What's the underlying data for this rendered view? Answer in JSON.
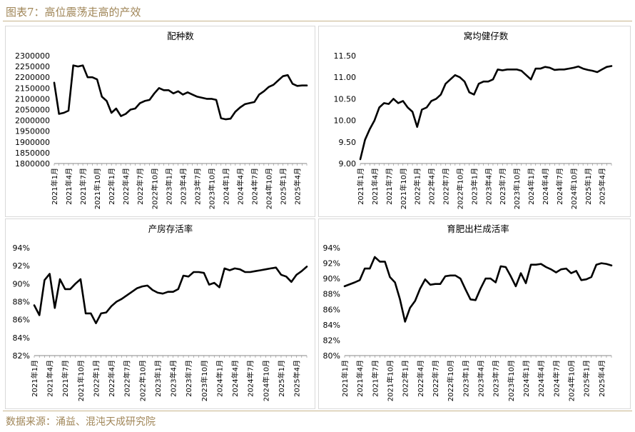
{
  "figure": {
    "title": "图表7：高位震荡走高的产效",
    "source": "数据来源：涌益、混沌天成研究院"
  },
  "chart_data": [
    {
      "type": "line",
      "title": "配种数",
      "x": [
        "2021年1月",
        "2021年4月",
        "2021年7月",
        "2021年10月",
        "2022年1月",
        "2022年4月",
        "2022年7月",
        "2022年10月",
        "2023年1月",
        "2023年4月",
        "2023年7月",
        "2023年10月",
        "2024年1月",
        "2024年4月",
        "2024年7月",
        "2024年10月",
        "2025年1月",
        "2025年4月"
      ],
      "ylim": [
        1800000,
        2300000
      ],
      "yticks": [
        1800000,
        1850000,
        1900000,
        1950000,
        2000000,
        2050000,
        2100000,
        2150000,
        2200000,
        2250000,
        2300000
      ],
      "ytick_labels": [
        "1800000",
        "1850000",
        "1900000",
        "1950000",
        "2000000",
        "2050000",
        "2100000",
        "2150000",
        "2200000",
        "2250000",
        "2300000"
      ],
      "x_range": [
        "2021-01",
        "2025-06"
      ],
      "series": [
        {
          "values": [
            [
              "2021-01",
              2175000
            ],
            [
              "2021-02",
              2030000
            ],
            [
              "2021-03",
              2035000
            ],
            [
              "2021-04",
              2045000
            ],
            [
              "2021-05",
              2255000
            ],
            [
              "2021-06",
              2250000
            ],
            [
              "2021-07",
              2255000
            ],
            [
              "2021-08",
              2200000
            ],
            [
              "2021-09",
              2200000
            ],
            [
              "2021-10",
              2190000
            ],
            [
              "2021-11",
              2110000
            ],
            [
              "2021-12",
              2090000
            ],
            [
              "2022-01",
              2035000
            ],
            [
              "2022-02",
              2055000
            ],
            [
              "2022-03",
              2020000
            ],
            [
              "2022-04",
              2030000
            ],
            [
              "2022-05",
              2050000
            ],
            [
              "2022-06",
              2055000
            ],
            [
              "2022-07",
              2080000
            ],
            [
              "2022-08",
              2090000
            ],
            [
              "2022-09",
              2095000
            ],
            [
              "2022-10",
              2125000
            ],
            [
              "2022-11",
              2150000
            ],
            [
              "2022-12",
              2140000
            ],
            [
              "2023-01",
              2140000
            ],
            [
              "2023-02",
              2125000
            ],
            [
              "2023-03",
              2135000
            ],
            [
              "2023-04",
              2120000
            ],
            [
              "2023-05",
              2130000
            ],
            [
              "2023-06",
              2120000
            ],
            [
              "2023-07",
              2110000
            ],
            [
              "2023-08",
              2105000
            ],
            [
              "2023-09",
              2100000
            ],
            [
              "2023-10",
              2100000
            ],
            [
              "2023-11",
              2095000
            ],
            [
              "2023-12",
              2010000
            ],
            [
              "2024-01",
              2005000
            ],
            [
              "2024-02",
              2008000
            ],
            [
              "2024-03",
              2040000
            ],
            [
              "2024-04",
              2060000
            ],
            [
              "2024-05",
              2075000
            ],
            [
              "2024-06",
              2080000
            ],
            [
              "2024-07",
              2085000
            ],
            [
              "2024-08",
              2120000
            ],
            [
              "2024-09",
              2135000
            ],
            [
              "2024-10",
              2155000
            ],
            [
              "2024-11",
              2165000
            ],
            [
              "2024-12",
              2185000
            ],
            [
              "2025-01",
              2205000
            ],
            [
              "2025-02",
              2210000
            ],
            [
              "2025-03",
              2170000
            ],
            [
              "2025-04",
              2160000
            ],
            [
              "2025-05",
              2162000
            ],
            [
              "2025-06",
              2162000
            ]
          ]
        }
      ]
    },
    {
      "type": "line",
      "title": "窝均健仔数",
      "x": [
        "2021年1月",
        "2021年4月",
        "2021年7月",
        "2021年10月",
        "2022年1月",
        "2022年4月",
        "2022年7月",
        "2022年10月",
        "2023年1月",
        "2023年4月",
        "2023年7月",
        "2023年10月",
        "2024年1月",
        "2024年4月",
        "2024年7月",
        "2024年10月",
        "2025年1月",
        "2025年4月"
      ],
      "ylim": [
        9.0,
        11.5
      ],
      "yticks": [
        9.0,
        9.5,
        10.0,
        10.5,
        11.0,
        11.5
      ],
      "ytick_labels": [
        "9.00",
        "9.50",
        "10.00",
        "10.50",
        "11.00",
        "11.50"
      ],
      "x_range": [
        "2021-01",
        "2025-06"
      ],
      "series": [
        {
          "values": [
            [
              "2021-01",
              9.1
            ],
            [
              "2021-02",
              9.55
            ],
            [
              "2021-03",
              9.8
            ],
            [
              "2021-04",
              10.0
            ],
            [
              "2021-05",
              10.3
            ],
            [
              "2021-06",
              10.4
            ],
            [
              "2021-07",
              10.38
            ],
            [
              "2021-08",
              10.5
            ],
            [
              "2021-09",
              10.4
            ],
            [
              "2021-10",
              10.45
            ],
            [
              "2021-11",
              10.3
            ],
            [
              "2021-12",
              10.2
            ],
            [
              "2022-01",
              9.85
            ],
            [
              "2022-02",
              10.25
            ],
            [
              "2022-03",
              10.3
            ],
            [
              "2022-04",
              10.45
            ],
            [
              "2022-05",
              10.5
            ],
            [
              "2022-06",
              10.6
            ],
            [
              "2022-07",
              10.85
            ],
            [
              "2022-08",
              10.95
            ],
            [
              "2022-09",
              11.05
            ],
            [
              "2022-10",
              11.0
            ],
            [
              "2022-11",
              10.9
            ],
            [
              "2022-12",
              10.65
            ],
            [
              "2023-01",
              10.6
            ],
            [
              "2023-02",
              10.85
            ],
            [
              "2023-03",
              10.9
            ],
            [
              "2023-04",
              10.9
            ],
            [
              "2023-05",
              10.95
            ],
            [
              "2023-06",
              11.18
            ],
            [
              "2023-07",
              11.16
            ],
            [
              "2023-08",
              11.18
            ],
            [
              "2023-09",
              11.18
            ],
            [
              "2023-10",
              11.18
            ],
            [
              "2023-11",
              11.15
            ],
            [
              "2023-12",
              11.05
            ],
            [
              "2024-01",
              10.95
            ],
            [
              "2024-02",
              11.2
            ],
            [
              "2024-03",
              11.2
            ],
            [
              "2024-04",
              11.24
            ],
            [
              "2024-05",
              11.22
            ],
            [
              "2024-06",
              11.17
            ],
            [
              "2024-07",
              11.18
            ],
            [
              "2024-08",
              11.18
            ],
            [
              "2024-09",
              11.2
            ],
            [
              "2024-10",
              11.22
            ],
            [
              "2024-11",
              11.25
            ],
            [
              "2024-12",
              11.2
            ],
            [
              "2025-01",
              11.17
            ],
            [
              "2025-02",
              11.15
            ],
            [
              "2025-03",
              11.12
            ],
            [
              "2025-04",
              11.18
            ],
            [
              "2025-05",
              11.24
            ],
            [
              "2025-06",
              11.26
            ]
          ]
        }
      ]
    },
    {
      "type": "line",
      "title": "产房存活率",
      "x": [
        "2021年1月",
        "2021年4月",
        "2021年7月",
        "2021年10月",
        "2022年1月",
        "2022年4月",
        "2022年7月",
        "2022年10月",
        "2023年1月",
        "2023年4月",
        "2023年7月",
        "2023年10月",
        "2024年1月",
        "2024年4月",
        "2024年7月",
        "2024年10月",
        "2025年1月",
        "2025年4月"
      ],
      "ylim": [
        82,
        94
      ],
      "yticks": [
        82,
        84,
        86,
        88,
        90,
        92,
        94
      ],
      "ytick_labels": [
        "82%",
        "84%",
        "86%",
        "88%",
        "90%",
        "92%",
        "94%"
      ],
      "x_range": [
        "2021-01",
        "2025-06"
      ],
      "series": [
        {
          "values": [
            [
              "2021-01",
              87.6
            ],
            [
              "2021-02",
              86.5
            ],
            [
              "2021-03",
              90.4
            ],
            [
              "2021-04",
              91.1
            ],
            [
              "2021-05",
              87.3
            ],
            [
              "2021-06",
              90.5
            ],
            [
              "2021-07",
              89.4
            ],
            [
              "2021-08",
              89.4
            ],
            [
              "2021-09",
              90.0
            ],
            [
              "2021-10",
              90.5
            ],
            [
              "2021-11",
              86.7
            ],
            [
              "2021-12",
              86.7
            ],
            [
              "2022-01",
              85.6
            ],
            [
              "2022-02",
              86.7
            ],
            [
              "2022-03",
              86.8
            ],
            [
              "2022-04",
              87.5
            ],
            [
              "2022-05",
              88.0
            ],
            [
              "2022-06",
              88.3
            ],
            [
              "2022-07",
              88.7
            ],
            [
              "2022-08",
              89.1
            ],
            [
              "2022-09",
              89.5
            ],
            [
              "2022-10",
              89.7
            ],
            [
              "2022-11",
              89.8
            ],
            [
              "2022-12",
              89.3
            ],
            [
              "2023-01",
              89.0
            ],
            [
              "2023-02",
              88.9
            ],
            [
              "2023-03",
              89.1
            ],
            [
              "2023-04",
              89.1
            ],
            [
              "2023-05",
              89.4
            ],
            [
              "2023-06",
              90.9
            ],
            [
              "2023-07",
              90.8
            ],
            [
              "2023-08",
              91.3
            ],
            [
              "2023-09",
              91.3
            ],
            [
              "2023-10",
              91.2
            ],
            [
              "2023-11",
              89.9
            ],
            [
              "2023-12",
              90.1
            ],
            [
              "2024-01",
              89.6
            ],
            [
              "2024-02",
              91.7
            ],
            [
              "2024-03",
              91.5
            ],
            [
              "2024-04",
              91.7
            ],
            [
              "2024-05",
              91.6
            ],
            [
              "2024-06",
              91.3
            ],
            [
              "2024-07",
              91.3
            ],
            [
              "2024-08",
              91.4
            ],
            [
              "2024-09",
              91.5
            ],
            [
              "2024-10",
              91.6
            ],
            [
              "2024-11",
              91.7
            ],
            [
              "2024-12",
              91.8
            ],
            [
              "2025-01",
              91.0
            ],
            [
              "2025-02",
              90.8
            ],
            [
              "2025-03",
              90.2
            ],
            [
              "2025-04",
              91.0
            ],
            [
              "2025-05",
              91.4
            ],
            [
              "2025-06",
              91.9
            ]
          ]
        }
      ]
    },
    {
      "type": "line",
      "title": "育肥出栏成活率",
      "x": [
        "2021年1月",
        "2021年4月",
        "2021年7月",
        "2021年10月",
        "2022年1月",
        "2022年4月",
        "2022年7月",
        "2022年10月",
        "2023年1月",
        "2023年4月",
        "2023年7月",
        "2023年10月",
        "2024年1月",
        "2024年4月",
        "2024年7月",
        "2024年10月",
        "2025年1月",
        "2025年4月"
      ],
      "ylim": [
        80,
        94
      ],
      "yticks": [
        80,
        82,
        84,
        86,
        88,
        90,
        92,
        94
      ],
      "ytick_labels": [
        "80%",
        "82%",
        "84%",
        "86%",
        "88%",
        "90%",
        "92%",
        "94%"
      ],
      "x_range": [
        "2021-01",
        "2025-06"
      ],
      "series": [
        {
          "values": [
            [
              "2021-01",
              89.0
            ],
            [
              "2021-03",
              89.5
            ],
            [
              "2021-04",
              89.8
            ],
            [
              "2021-05",
              91.3
            ],
            [
              "2021-06",
              91.3
            ],
            [
              "2021-07",
              92.8
            ],
            [
              "2021-08",
              92.2
            ],
            [
              "2021-09",
              92.2
            ],
            [
              "2021-10",
              90.2
            ],
            [
              "2021-11",
              89.5
            ],
            [
              "2021-12",
              87.3
            ],
            [
              "2022-01",
              84.4
            ],
            [
              "2022-02",
              86.2
            ],
            [
              "2022-03",
              87.1
            ],
            [
              "2022-04",
              88.7
            ],
            [
              "2022-05",
              89.9
            ],
            [
              "2022-06",
              89.2
            ],
            [
              "2022-07",
              89.3
            ],
            [
              "2022-08",
              89.3
            ],
            [
              "2022-09",
              90.3
            ],
            [
              "2022-10",
              90.4
            ],
            [
              "2022-11",
              90.4
            ],
            [
              "2022-12",
              90.0
            ],
            [
              "2023-01",
              88.6
            ],
            [
              "2023-02",
              87.3
            ],
            [
              "2023-03",
              87.2
            ],
            [
              "2023-04",
              88.7
            ],
            [
              "2023-05",
              90.0
            ],
            [
              "2023-06",
              90.0
            ],
            [
              "2023-07",
              89.5
            ],
            [
              "2023-08",
              91.6
            ],
            [
              "2023-09",
              91.5
            ],
            [
              "2023-10",
              90.3
            ],
            [
              "2023-11",
              89.0
            ],
            [
              "2023-12",
              90.7
            ],
            [
              "2024-01",
              89.4
            ],
            [
              "2024-02",
              91.8
            ],
            [
              "2024-03",
              91.8
            ],
            [
              "2024-04",
              91.9
            ],
            [
              "2024-05",
              91.5
            ],
            [
              "2024-06",
              91.2
            ],
            [
              "2024-07",
              90.8
            ],
            [
              "2024-08",
              91.2
            ],
            [
              "2024-09",
              91.3
            ],
            [
              "2024-10",
              90.7
            ],
            [
              "2024-11",
              91.0
            ],
            [
              "2024-12",
              89.8
            ],
            [
              "2025-01",
              89.9
            ],
            [
              "2025-02",
              90.2
            ],
            [
              "2025-03",
              91.8
            ],
            [
              "2025-04",
              92.0
            ],
            [
              "2025-05",
              91.9
            ],
            [
              "2025-06",
              91.7
            ]
          ]
        }
      ]
    }
  ]
}
